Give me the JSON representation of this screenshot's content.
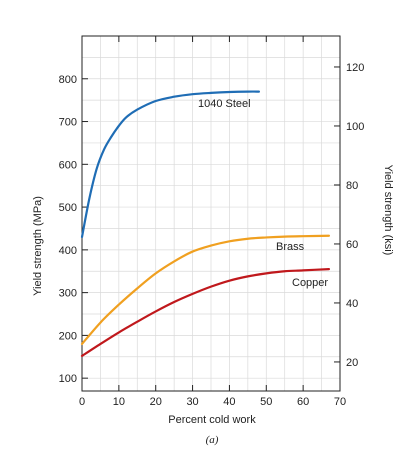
{
  "chart_data": {
    "type": "line",
    "title": "",
    "xlabel": "Percent cold work",
    "ylabel_left": "Yield strength (MPa)",
    "ylabel_right": "Yield strength (ksi)",
    "caption": "(a)",
    "xlim": [
      0,
      70
    ],
    "ylim_left": [
      70,
      900
    ],
    "ylim_right": [
      10.15,
      130.5
    ],
    "x_ticks": [
      0,
      10,
      20,
      30,
      40,
      50,
      60,
      70
    ],
    "y_ticks_left": [
      100,
      200,
      300,
      400,
      500,
      600,
      700,
      800
    ],
    "y_ticks_right": [
      20,
      40,
      60,
      80,
      100,
      120
    ],
    "grid": true,
    "series": [
      {
        "name": "1040 Steel",
        "color": "#1f6db5",
        "x": [
          0,
          2,
          4,
          6,
          8,
          10,
          12,
          15,
          20,
          25,
          30,
          35,
          40,
          45,
          48
        ],
        "y": [
          430,
          520,
          590,
          635,
          665,
          690,
          710,
          728,
          748,
          758,
          764,
          767,
          769,
          770,
          770
        ]
      },
      {
        "name": "Brass",
        "color": "#f0a020",
        "x": [
          0,
          5,
          10,
          15,
          20,
          25,
          30,
          35,
          40,
          45,
          50,
          55,
          60,
          67
        ],
        "y": [
          180,
          230,
          272,
          310,
          345,
          373,
          396,
          410,
          420,
          426,
          429,
          431,
          432,
          433
        ]
      },
      {
        "name": "Copper",
        "color": "#c0181c",
        "x": [
          0,
          5,
          10,
          15,
          20,
          25,
          30,
          35,
          40,
          45,
          50,
          55,
          60,
          67
        ],
        "y": [
          152,
          180,
          207,
          232,
          256,
          278,
          297,
          314,
          328,
          338,
          345,
          350,
          352,
          355
        ]
      }
    ]
  }
}
